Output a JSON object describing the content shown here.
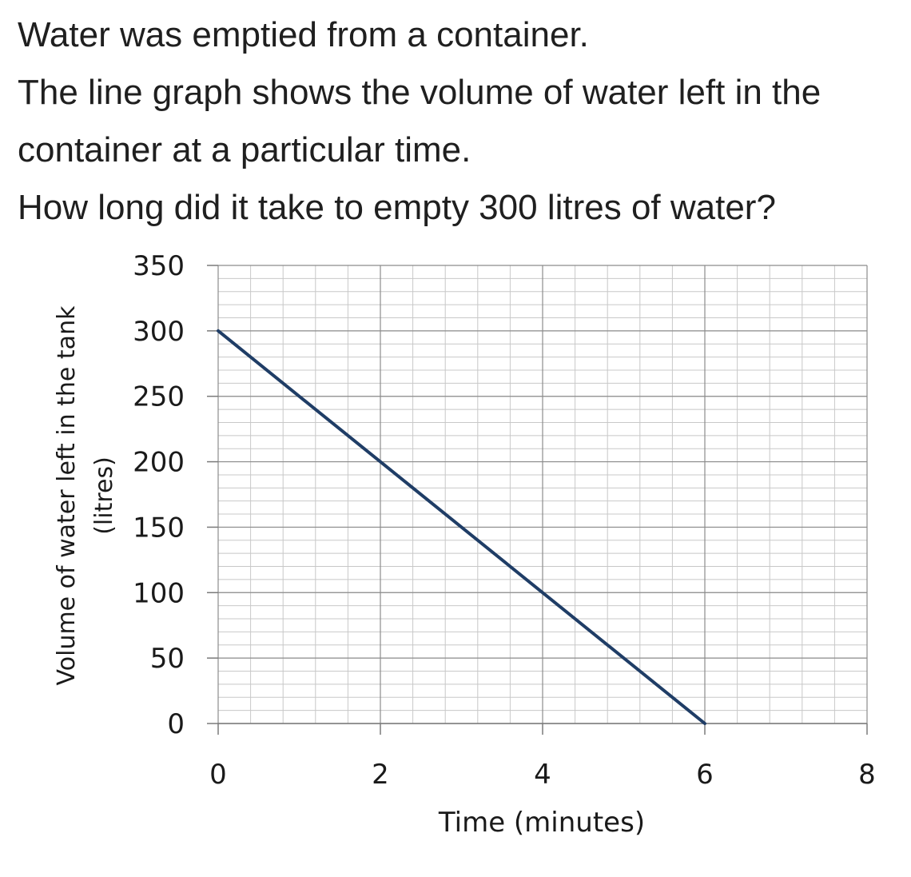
{
  "question": {
    "lines": [
      "Water was emptied from a container.",
      "The line graph shows the volume of water left in the",
      "container at a particular time.",
      "How long did it take to empty 300 litres of water?"
    ]
  },
  "chart_data": {
    "type": "line",
    "title": "",
    "xlabel": "Time (minutes)",
    "ylabel": "Volume of water left in the tank",
    "ylabel_unit": "(litres)",
    "xlim": [
      0,
      8
    ],
    "ylim": [
      0,
      350
    ],
    "x_ticks": [
      0,
      2,
      4,
      6,
      8
    ],
    "y_ticks": [
      0,
      50,
      100,
      150,
      200,
      250,
      300,
      350
    ],
    "x_minor_step": 0.4,
    "y_minor_step": 10,
    "grid": true,
    "legend": "none",
    "series": [
      {
        "color": "#1f3d66",
        "x": [
          0,
          2,
          4,
          6
        ],
        "y": [
          300,
          200,
          100,
          0
        ]
      }
    ]
  }
}
